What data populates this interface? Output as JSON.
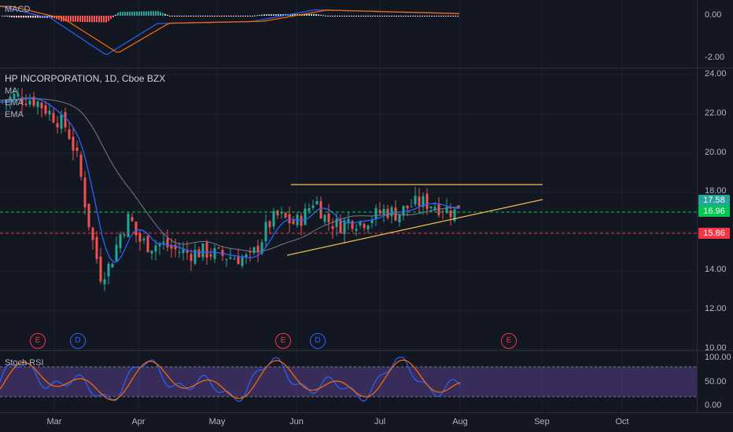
{
  "macd": {
    "label": "MACD",
    "ticks": [
      "0.00",
      "-2.00"
    ]
  },
  "main": {
    "title": "HP INCORPORATION, 1D, Cboe BZX",
    "indicators": [
      "MA",
      "EMA",
      "EMA"
    ],
    "ticks": [
      "24.00",
      "22.00",
      "20.00",
      "18.00",
      "14.00",
      "12.00",
      "10.00"
    ],
    "price_badges": [
      {
        "value": "17.58",
        "color": "#26a69a"
      },
      {
        "value": "16.96",
        "color": "#00c853"
      },
      {
        "value": "15.86",
        "color": "#f23645"
      }
    ],
    "events": [
      {
        "label": "E",
        "color": "#f23645"
      },
      {
        "label": "D",
        "color": "#2962ff"
      },
      {
        "label": "E",
        "color": "#f23645"
      },
      {
        "label": "D",
        "color": "#2962ff"
      },
      {
        "label": "E",
        "color": "#f23645"
      }
    ]
  },
  "rsi": {
    "label": "Stoch RSI",
    "ticks": [
      "100.00",
      "50.00",
      "0.00"
    ]
  },
  "xaxis": {
    "labels": [
      "Mar",
      "Apr",
      "May",
      "Jun",
      "Jul",
      "Aug",
      "Sep",
      "Oct"
    ]
  },
  "colors": {
    "bg": "#131722",
    "up": "#26a69a",
    "down": "#ef5350",
    "trendline": "#f5c04a",
    "ema_fast": "#2962ff",
    "ema_slow": "#787b86",
    "rsi_k": "#2962ff",
    "rsi_d": "#ff6d00",
    "rsi_band": "#7e57c2"
  }
}
